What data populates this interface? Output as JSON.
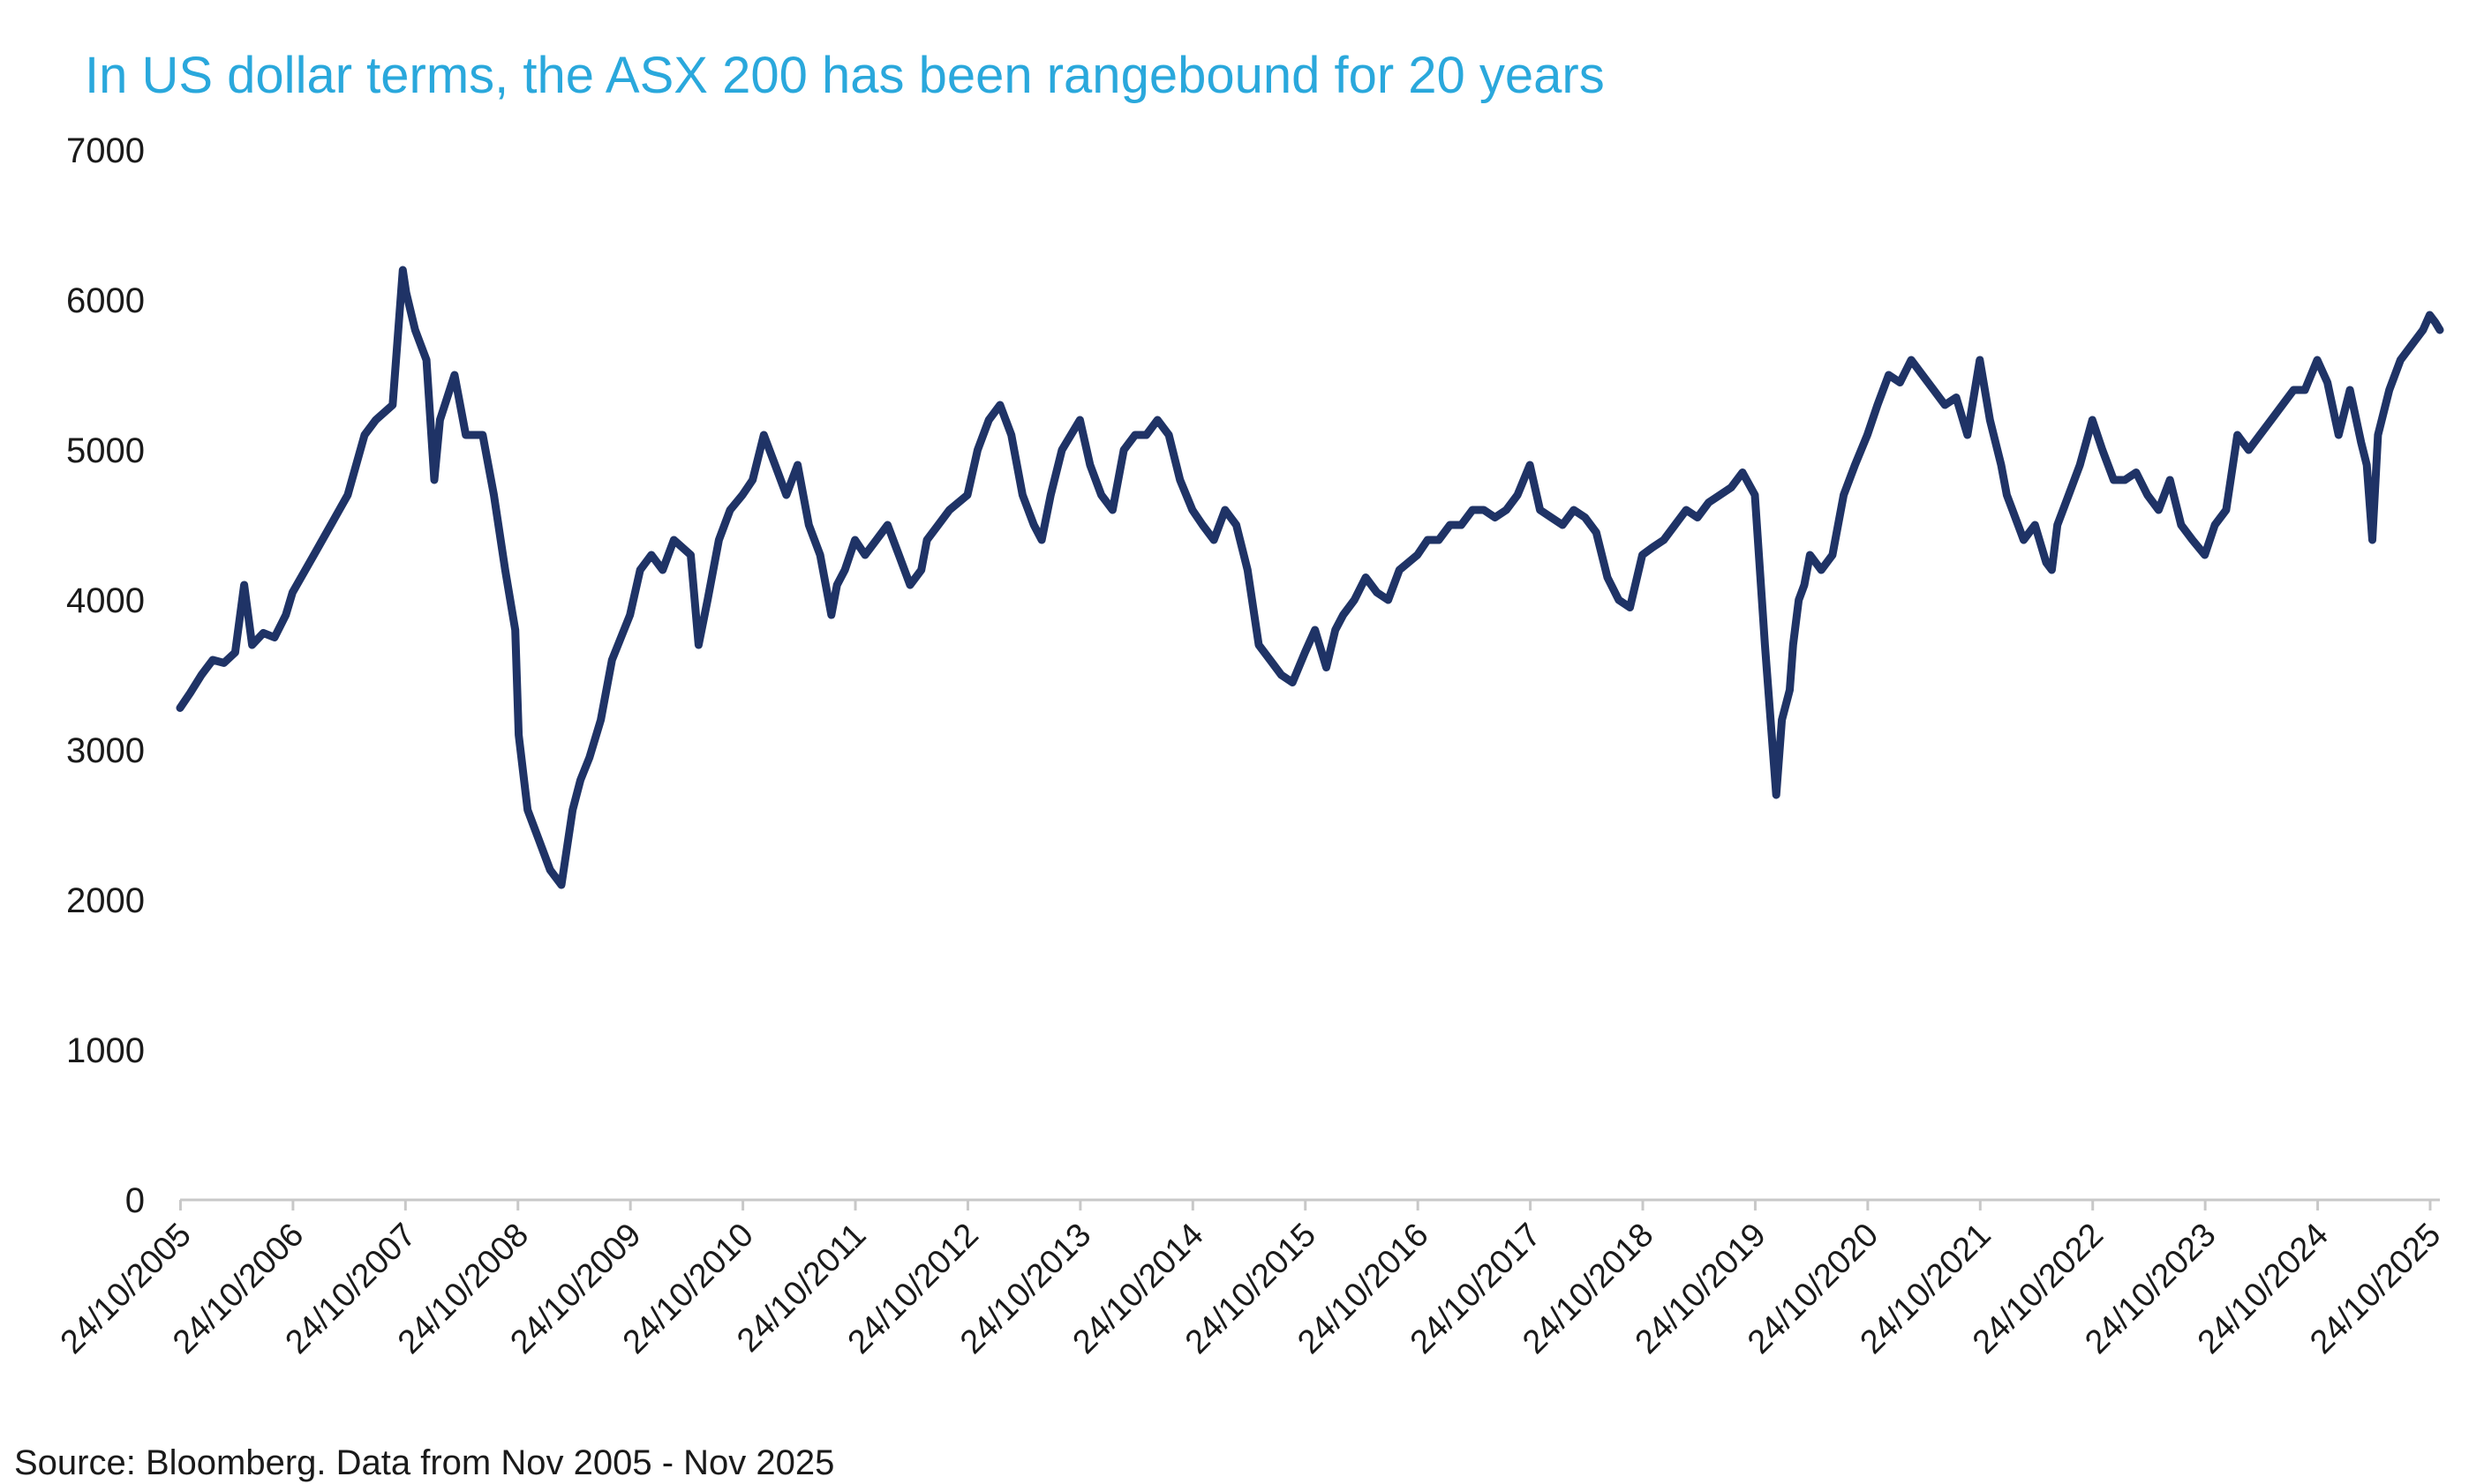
{
  "title": "In US dollar terms, the ASX 200 has been rangebound for 20 years",
  "source": "Source: Bloomberg. Data from Nov 2005 - Nov 2025",
  "colors": {
    "title": "#2aa8dc",
    "series": "#1f3366",
    "axis": "#c8c8c8",
    "text": "#1a1a1a"
  },
  "chart_data": {
    "type": "line",
    "title": "In US dollar terms, the ASX 200 has been rangebound for 20 years",
    "xlabel": "",
    "ylabel": "",
    "grid": false,
    "legend": "none",
    "ylim": [
      0,
      7000
    ],
    "yticks": [
      "0",
      "1000",
      "2000",
      "3000",
      "4000",
      "5000",
      "6000",
      "7000"
    ],
    "x_range_years": [
      2005.81,
      2025.9
    ],
    "xtick_labels": [
      "24/10/2005",
      "24/10/2006",
      "24/10/2007",
      "24/10/2008",
      "24/10/2009",
      "24/10/2010",
      "24/10/2011",
      "24/10/2012",
      "24/10/2013",
      "24/10/2014",
      "24/10/2015",
      "24/10/2016",
      "24/10/2017",
      "24/10/2018",
      "24/10/2019",
      "24/10/2020",
      "24/10/2021",
      "24/10/2022",
      "24/10/2023",
      "24/10/2024",
      "24/10/2025"
    ],
    "series": [
      {
        "name": "ASX 200 (USD)",
        "x": [
          2005.81,
          2005.9,
          2006.0,
          2006.1,
          2006.2,
          2006.3,
          2006.38,
          2006.45,
          2006.55,
          2006.65,
          2006.75,
          2006.81,
          2007.0,
          2007.15,
          2007.3,
          2007.45,
          2007.55,
          2007.7,
          2007.79,
          2007.82,
          2007.9,
          2008.0,
          2008.07,
          2008.12,
          2008.25,
          2008.35,
          2008.5,
          2008.6,
          2008.7,
          2008.79,
          2008.82,
          2008.9,
          2009.0,
          2009.1,
          2009.2,
          2009.3,
          2009.37,
          2009.45,
          2009.55,
          2009.65,
          2009.81,
          2009.9,
          2010.0,
          2010.1,
          2010.2,
          2010.35,
          2010.42,
          2010.5,
          2010.6,
          2010.7,
          2010.81,
          2010.9,
          2011.0,
          2011.1,
          2011.2,
          2011.3,
          2011.4,
          2011.5,
          2011.6,
          2011.65,
          2011.72,
          2011.81,
          2011.9,
          2012.0,
          2012.1,
          2012.2,
          2012.3,
          2012.4,
          2012.45,
          2012.55,
          2012.65,
          2012.81,
          2012.9,
          2013.0,
          2013.1,
          2013.2,
          2013.3,
          2013.4,
          2013.47,
          2013.55,
          2013.65,
          2013.81,
          2013.9,
          2014.0,
          2014.1,
          2014.2,
          2014.3,
          2014.4,
          2014.5,
          2014.6,
          2014.7,
          2014.81,
          2014.9,
          2015.0,
          2015.1,
          2015.2,
          2015.3,
          2015.4,
          2015.5,
          2015.6,
          2015.7,
          2015.81,
          2015.9,
          2016.0,
          2016.08,
          2016.15,
          2016.25,
          2016.35,
          2016.45,
          2016.55,
          2016.65,
          2016.81,
          2016.9,
          2017.0,
          2017.1,
          2017.2,
          2017.3,
          2017.4,
          2017.5,
          2017.6,
          2017.7,
          2017.81,
          2017.9,
          2018.0,
          2018.1,
          2018.2,
          2018.3,
          2018.4,
          2018.5,
          2018.6,
          2018.7,
          2018.81,
          2018.9,
          2019.0,
          2019.1,
          2019.2,
          2019.3,
          2019.4,
          2019.5,
          2019.6,
          2019.7,
          2019.81,
          2019.9,
          2020.0,
          2020.05,
          2020.12,
          2020.15,
          2020.2,
          2020.25,
          2020.3,
          2020.4,
          2020.5,
          2020.6,
          2020.7,
          2020.81,
          2020.9,
          2021.0,
          2021.1,
          2021.2,
          2021.3,
          2021.4,
          2021.5,
          2021.6,
          2021.7,
          2021.81,
          2021.9,
          2022.0,
          2022.05,
          2022.1,
          2022.2,
          2022.3,
          2022.4,
          2022.45,
          2022.5,
          2022.6,
          2022.7,
          2022.81,
          2022.9,
          2023.0,
          2023.1,
          2023.2,
          2023.3,
          2023.4,
          2023.5,
          2023.6,
          2023.7,
          2023.81,
          2023.9,
          2024.0,
          2024.1,
          2024.2,
          2024.3,
          2024.4,
          2024.5,
          2024.6,
          2024.7,
          2024.81,
          2024.9,
          2025.0,
          2025.1,
          2025.2,
          2025.25,
          2025.3,
          2025.35,
          2025.45,
          2025.55,
          2025.65,
          2025.75,
          2025.81,
          2025.86,
          2025.9
        ],
        "values": [
          3280,
          3380,
          3500,
          3600,
          3580,
          3650,
          4100,
          3700,
          3780,
          3750,
          3900,
          4050,
          4300,
          4500,
          4700,
          5100,
          5200,
          5300,
          6200,
          6050,
          5800,
          5600,
          4800,
          5200,
          5500,
          5100,
          5100,
          4700,
          4200,
          3800,
          3100,
          2600,
          2400,
          2200,
          2100,
          2600,
          2800,
          2950,
          3200,
          3600,
          3900,
          4200,
          4300,
          4200,
          4400,
          4300,
          3700,
          4000,
          4400,
          4600,
          4700,
          4800,
          5100,
          4900,
          4700,
          4900,
          4500,
          4300,
          3900,
          4100,
          4200,
          4400,
          4300,
          4400,
          4500,
          4300,
          4100,
          4200,
          4400,
          4500,
          4600,
          4700,
          5000,
          5200,
          5300,
          5100,
          4700,
          4500,
          4400,
          4700,
          5000,
          5200,
          4900,
          4700,
          4600,
          5000,
          5100,
          5100,
          5200,
          5100,
          4800,
          4600,
          4500,
          4400,
          4600,
          4500,
          4200,
          3700,
          3600,
          3500,
          3450,
          3650,
          3800,
          3550,
          3800,
          3900,
          4000,
          4150,
          4050,
          4000,
          4200,
          4300,
          4400,
          4400,
          4500,
          4500,
          4600,
          4600,
          4550,
          4600,
          4700,
          4900,
          4600,
          4550,
          4500,
          4600,
          4550,
          4450,
          4150,
          4000,
          3950,
          4300,
          4350,
          4400,
          4500,
          4600,
          4550,
          4650,
          4700,
          4750,
          4850,
          4700,
          3700,
          2700,
          3200,
          3400,
          3700,
          4000,
          4100,
          4300,
          4200,
          4300,
          4700,
          4900,
          5100,
          5300,
          5500,
          5450,
          5600,
          5500,
          5400,
          5300,
          5350,
          5100,
          5600,
          5200,
          4900,
          4700,
          4600,
          4400,
          4500,
          4250,
          4200,
          4500,
          4700,
          4900,
          5200,
          5000,
          4800,
          4800,
          4850,
          4700,
          4600,
          4800,
          4500,
          4400,
          4300,
          4500,
          4600,
          5100,
          5000,
          5100,
          5200,
          5300,
          5400,
          5400,
          5600,
          5450,
          5100,
          5400,
          5050,
          4900,
          4400,
          5100,
          5400,
          5600,
          5700,
          5800,
          5900,
          5850,
          5800
        ]
      }
    ]
  }
}
